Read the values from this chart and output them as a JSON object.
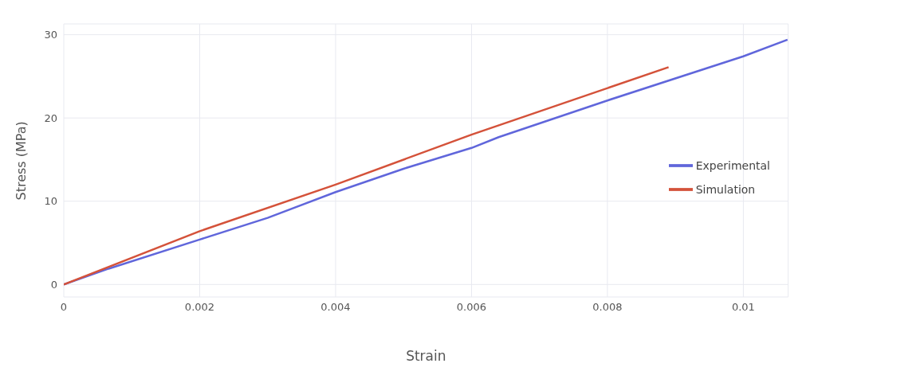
{
  "chart_data": {
    "type": "line",
    "xlabel": "Strain",
    "ylabel": "Stress (MPa)",
    "xlim": [
      0,
      0.01066
    ],
    "xticks": [
      0,
      0.002,
      0.004,
      0.006,
      0.008,
      0.01
    ],
    "ylim": [
      -1.5,
      31.3
    ],
    "yticks": [
      0,
      10,
      20,
      30
    ],
    "grid": true,
    "legend": "right",
    "marker": "none",
    "line_style": "solid",
    "series": [
      {
        "name": "Experimental",
        "color": "#6066db",
        "x": [
          0,
          0.00066,
          0.002,
          0.003,
          0.004,
          0.005,
          0.006,
          0.0064,
          0.008,
          0.01,
          0.01065
        ],
        "values": [
          0,
          1.9,
          5.4,
          8.0,
          11.1,
          13.9,
          16.4,
          17.7,
          22.1,
          27.4,
          29.4
        ]
      },
      {
        "name": "Simulation",
        "color": "#d4523a",
        "x": [
          0,
          0.002,
          0.004,
          0.006,
          0.0089
        ],
        "values": [
          0,
          6.4,
          12,
          18,
          26.1
        ]
      }
    ]
  }
}
